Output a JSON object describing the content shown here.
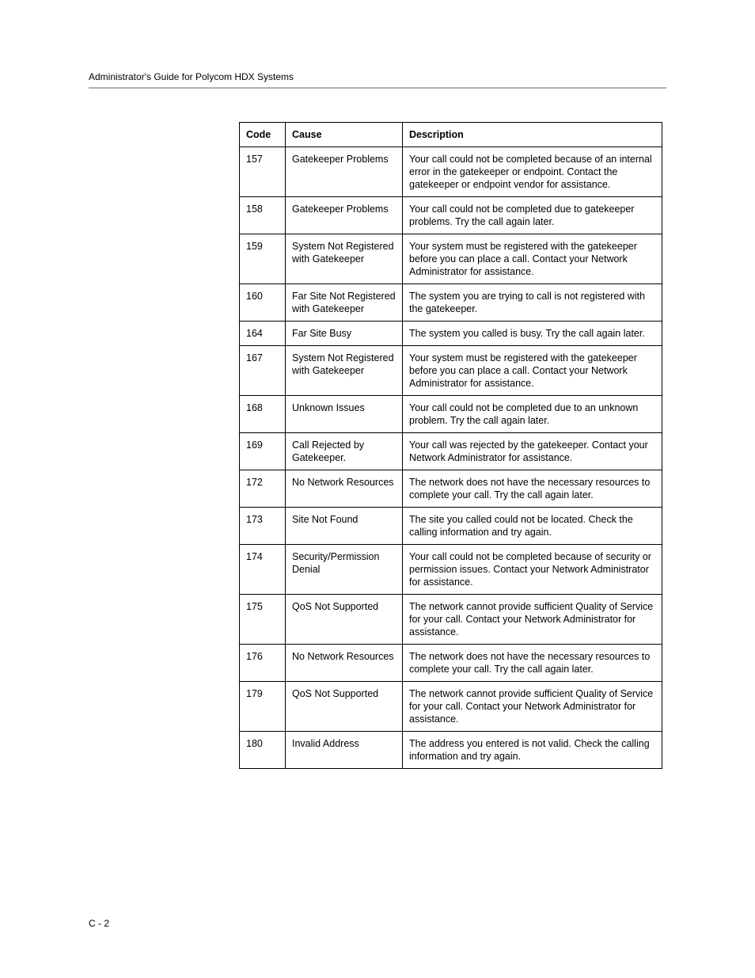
{
  "header": {
    "title": "Administrator's Guide for Polycom HDX Systems"
  },
  "table": {
    "columns": [
      "Code",
      "Cause",
      "Description"
    ],
    "rows": [
      [
        "157",
        "Gatekeeper Problems",
        "Your call could not be completed because of an internal error in the gatekeeper or endpoint. Contact the gatekeeper or endpoint vendor for assistance."
      ],
      [
        "158",
        "Gatekeeper Problems",
        "Your call could not be completed due to gatekeeper problems. Try the call again later."
      ],
      [
        "159",
        "System Not Registered with Gatekeeper",
        "Your system must be registered with the gatekeeper before you can place a call. Contact your Network Administrator for assistance."
      ],
      [
        "160",
        "Far Site Not Registered with Gatekeeper",
        "The system you are trying to call is not registered with the gatekeeper."
      ],
      [
        "164",
        "Far Site Busy",
        "The system you called is busy. Try the call again later."
      ],
      [
        "167",
        "System Not Registered with Gatekeeper",
        "Your system must be registered with the gatekeeper before you can place a call. Contact your Network Administrator for assistance."
      ],
      [
        "168",
        "Unknown Issues",
        "Your call could not be completed due to an unknown problem. Try the call again later."
      ],
      [
        "169",
        "Call Rejected by Gatekeeper.",
        "Your call was rejected by the gatekeeper. Contact your Network Administrator for assistance."
      ],
      [
        "172",
        "No Network Resources",
        "The network does not have the necessary resources to complete your call. Try the call again later."
      ],
      [
        "173",
        "Site Not Found",
        "The site you called could not be located. Check the calling information and try again."
      ],
      [
        "174",
        "Security/Permission Denial",
        "Your call could not be completed because of security or permission issues. Contact your Network Administrator for assistance."
      ],
      [
        "175",
        "QoS Not Supported",
        "The network cannot provide sufficient Quality of Service for your call. Contact your Network Administrator for assistance."
      ],
      [
        "176",
        "No Network Resources",
        "The network does not have the necessary resources to complete your call. Try the call again later."
      ],
      [
        "179",
        "QoS Not Supported",
        "The network cannot provide sufficient Quality of Service for your call. Contact your Network Administrator for assistance."
      ],
      [
        "180",
        "Invalid Address",
        "The address you entered is not valid. Check the calling information and try again."
      ]
    ]
  },
  "footer": {
    "page_number": "C - 2"
  }
}
